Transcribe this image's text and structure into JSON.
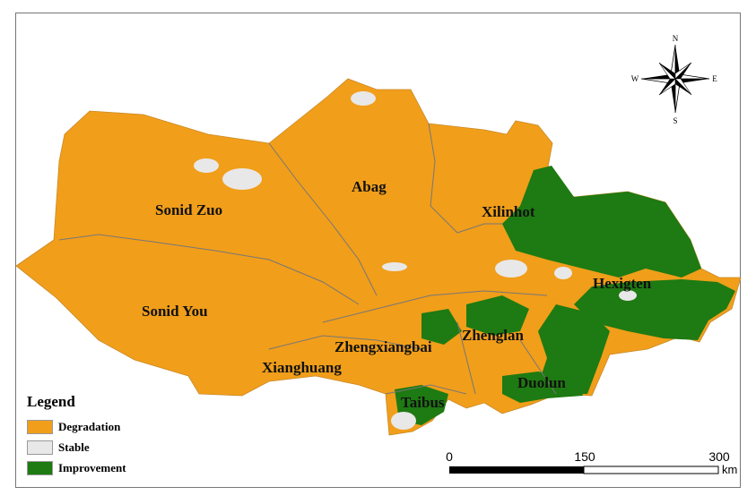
{
  "map": {
    "regions": [
      "Sonid Zuo",
      "Abag",
      "Xilinhot",
      "Sonid You",
      "Hexigten",
      "Zhengxiangbai",
      "Zhenglan",
      "Xianghuang",
      "Taibus",
      "Duolun"
    ]
  },
  "legend": {
    "title": "Legend",
    "items": [
      {
        "label": "Degradation",
        "color": "#f19e1a"
      },
      {
        "label": "Stable",
        "color": "#e8e8e8"
      },
      {
        "label": "Improvement",
        "color": "#1e7a12"
      }
    ]
  },
  "scale_bar": {
    "ticks": [
      "0",
      "150",
      "300"
    ],
    "unit": "km"
  },
  "north_arrow": {
    "n": "N",
    "s": "S",
    "e": "E",
    "w": "W"
  }
}
